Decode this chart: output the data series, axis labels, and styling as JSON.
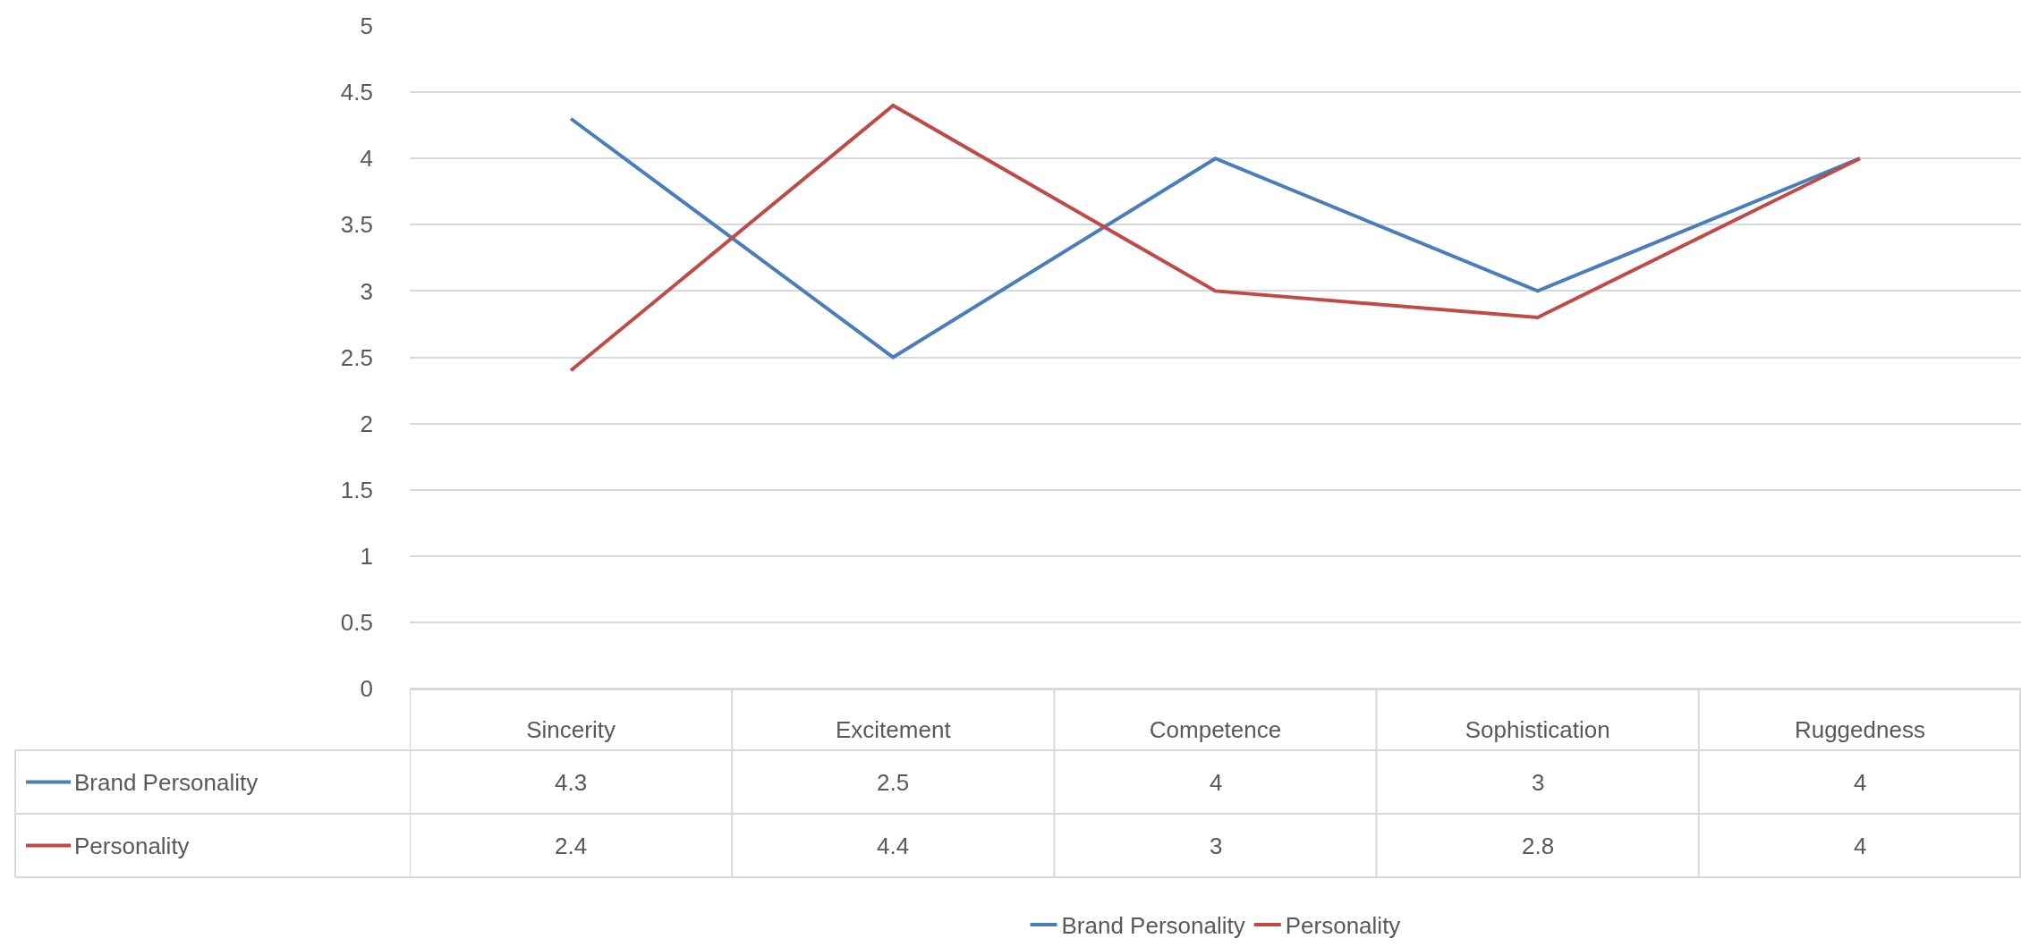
{
  "chart_data": {
    "type": "line",
    "categories": [
      "Sincerity",
      "Excitement",
      "Competence",
      "Sophistication",
      "Ruggedness"
    ],
    "series": [
      {
        "name": "Brand Personality",
        "color": "#4a7ebb",
        "values": [
          4.3,
          2.5,
          4,
          3,
          4
        ]
      },
      {
        "name": "Personality",
        "color": "#be4b48",
        "values": [
          2.4,
          4.4,
          3,
          2.8,
          4
        ]
      }
    ],
    "ylim": [
      0,
      5
    ],
    "yticks": [
      0,
      0.5,
      1,
      1.5,
      2,
      2.5,
      3,
      3.5,
      4,
      4.5,
      5
    ],
    "grid": "y",
    "legend": "bottom",
    "data_labels": true,
    "marker": "none",
    "line_style": "solid"
  }
}
